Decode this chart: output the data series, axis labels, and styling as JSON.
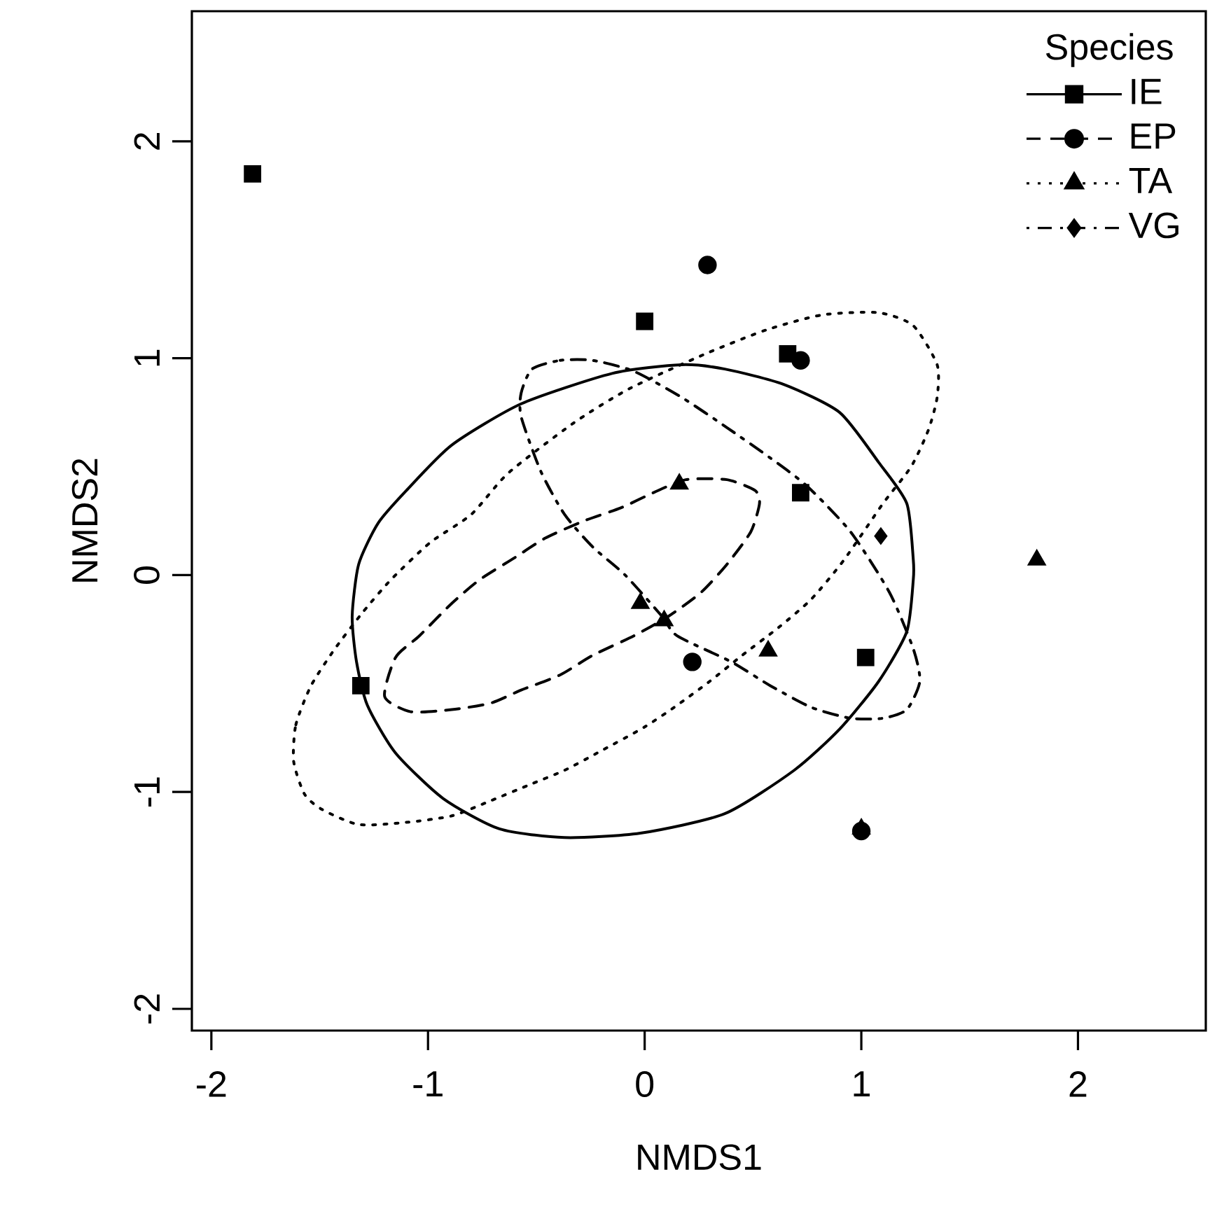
{
  "chart_data": {
    "type": "scatter",
    "xlabel": "NMDS1",
    "ylabel": "NMDS2",
    "legend_title": "Species",
    "legend": "top right",
    "grid": false,
    "xlim": [
      -2.09,
      2.59
    ],
    "ylim": [
      -2.1,
      2.6
    ],
    "xticks": [
      -2,
      -1,
      0,
      1,
      2
    ],
    "yticks": [
      -2,
      -1,
      0,
      1,
      2
    ],
    "series": [
      {
        "name": "IE",
        "marker": "square",
        "line_style": "solid",
        "color": "#000000",
        "x": [
          -1.81,
          0.0,
          0.66,
          0.72,
          1.02,
          -1.31
        ],
        "values": [
          1.85,
          1.17,
          1.02,
          0.38,
          -0.38,
          -0.51
        ]
      },
      {
        "name": "EP",
        "marker": "circle",
        "line_style": "dashed",
        "color": "#000000",
        "x": [
          0.29,
          0.72,
          0.22,
          1.0
        ],
        "values": [
          1.43,
          0.99,
          -0.4,
          -1.18
        ]
      },
      {
        "name": "TA",
        "marker": "triangle",
        "line_style": "dotted",
        "color": "#000000",
        "x": [
          0.16,
          -0.02,
          0.09,
          0.57,
          1.81,
          1.0
        ],
        "values": [
          0.42,
          -0.13,
          -0.21,
          -0.35,
          0.07,
          -1.17
        ]
      },
      {
        "name": "VG",
        "marker": "diamond",
        "line_style": "dashdot",
        "color": "#000000",
        "x": [
          1.09
        ],
        "values": [
          0.18
        ]
      }
    ]
  }
}
